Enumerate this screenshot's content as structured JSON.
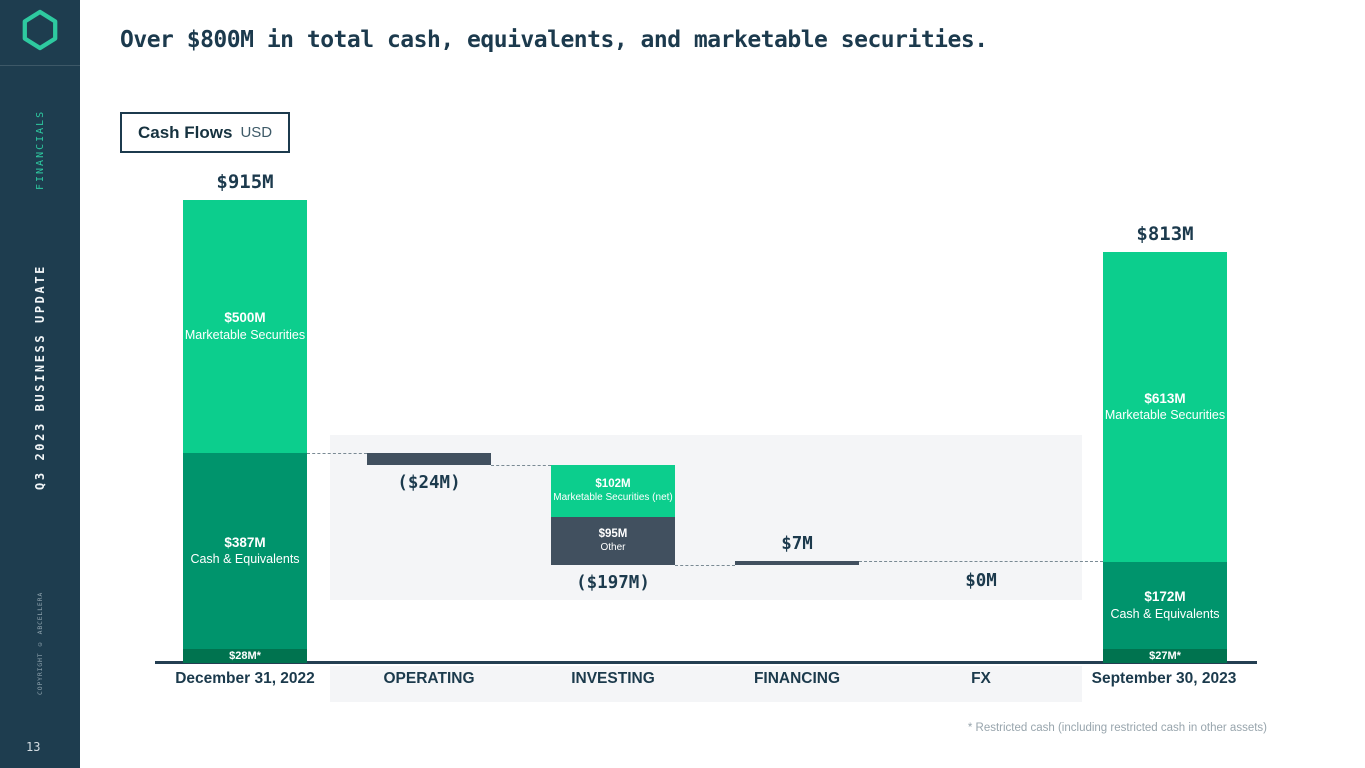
{
  "sidebar": {
    "section_label": "FINANCIALS",
    "deck_title": "Q3 2023 BUSINESS UPDATE",
    "copyright": "COPYRIGHT © ABCELLERA",
    "page_number": "13"
  },
  "header": {
    "title": "Over $800M in total cash, equivalents, and marketable securities."
  },
  "legend": {
    "title": "Cash Flows",
    "unit": "USD"
  },
  "footnote": "* Restricted cash (including restricted cash in other assets)",
  "colors": {
    "sidebar_bg": "#1E3D4F",
    "accent_green": "#2EC9A0",
    "bright_green": "#0CCE8D",
    "mid_green": "#00946C",
    "deep_green": "#00734F",
    "navy": "#1C3A4D",
    "slate_bar": "#41505F",
    "band_gray": "#F4F5F7",
    "muted_text": "#98A5AD"
  },
  "chart_data": {
    "type": "bar",
    "subtype": "waterfall",
    "unit": "USD millions",
    "title": "Cash Flows USD",
    "categories": [
      "December 31, 2022",
      "OPERATING",
      "INVESTING",
      "FINANCING",
      "FX",
      "September 30, 2023"
    ],
    "start_bar": {
      "category": "December 31, 2022",
      "total": 915,
      "total_label": "$915M",
      "segments": [
        {
          "name": "Marketable Securities",
          "value": 500,
          "label": "$500M",
          "color_key": "bright_green"
        },
        {
          "name": "Cash & Equivalents",
          "value": 387,
          "label": "$387M",
          "color_key": "mid_green"
        },
        {
          "name": "",
          "value": 28,
          "label": "$28M*",
          "color_key": "deep_green"
        }
      ]
    },
    "flows": [
      {
        "category": "OPERATING",
        "value": -24,
        "label": "($24M)",
        "label_position": "below",
        "segments": [
          {
            "name": "",
            "value": -24,
            "label": "",
            "color_key": "slate_bar"
          }
        ]
      },
      {
        "category": "INVESTING",
        "value": -197,
        "label": "($197M)",
        "label_position": "below",
        "segments": [
          {
            "name": "Marketable Securities (net)",
            "value": -102,
            "label": "$102M",
            "color_key": "bright_green"
          },
          {
            "name": "Other",
            "value": -95,
            "label": "$95M",
            "color_key": "slate_bar"
          }
        ]
      },
      {
        "category": "FINANCING",
        "value": 7,
        "label": "$7M",
        "label_position": "above",
        "segments": [
          {
            "name": "",
            "value": 7,
            "label": "",
            "color_key": "slate_bar"
          }
        ]
      },
      {
        "category": "FX",
        "value": 0,
        "label": "$0M",
        "label_position": "below",
        "segments": []
      }
    ],
    "end_bar": {
      "category": "September 30, 2023",
      "total": 813,
      "total_label": "$813M",
      "segments": [
        {
          "name": "Marketable Securities",
          "value": 613,
          "label": "$613M",
          "color_key": "bright_green"
        },
        {
          "name": "Cash & Equivalents",
          "value": 172,
          "label": "$172M",
          "color_key": "mid_green"
        },
        {
          "name": "",
          "value": 27,
          "label": "$27M*",
          "color_key": "deep_green"
        }
      ]
    }
  }
}
